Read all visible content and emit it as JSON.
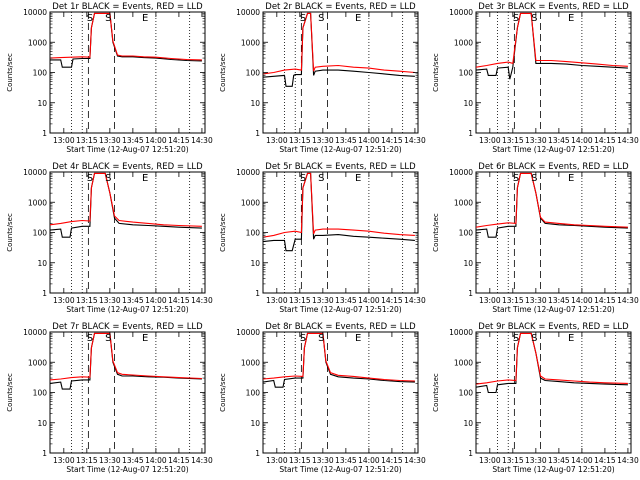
{
  "common": {
    "ylabel": "Counts/sec",
    "xlabel": "Start Time (12-Aug-07 12:51:20)",
    "x_ticks": [
      "13:00",
      "13:15",
      "13:30",
      "13:45",
      "14:00",
      "14:15",
      "14:30"
    ],
    "y_ticks": [
      "1",
      "10",
      "100",
      "1000",
      "10000"
    ],
    "markers": [
      "S",
      "S",
      "E"
    ],
    "colors": {
      "events": "#000000",
      "lld": "#ff0000"
    }
  },
  "chart_data": [
    {
      "type": "line",
      "title": "Det 1r BLACK = Events, RED = LLD",
      "xlabel": "Start Time (12-Aug-07 12:51:20)",
      "ylabel": "Counts/sec",
      "y_scale": "log",
      "ylim": [
        1,
        10000
      ],
      "xlim": [
        "12:51",
        "14:32"
      ],
      "series": [
        {
          "name": "Events",
          "color": "#000000",
          "x": [
            "12:51",
            "12:58",
            "12:59",
            "13:05",
            "13:06",
            "13:12",
            "13:17",
            "13:18",
            "13:20",
            "13:22",
            "13:27",
            "13:30",
            "13:32",
            "13:35",
            "13:38",
            "13:45",
            "13:52",
            "14:00",
            "14:10",
            "14:20",
            "14:30"
          ],
          "values": [
            260,
            260,
            150,
            150,
            280,
            290,
            290,
            3000,
            9000,
            9000,
            9000,
            9000,
            1000,
            350,
            330,
            330,
            310,
            300,
            270,
            250,
            240
          ]
        },
        {
          "name": "LLD",
          "color": "#ff0000",
          "x": [
            "12:51",
            "12:58",
            "13:05",
            "13:12",
            "13:17",
            "13:18",
            "13:20",
            "13:22",
            "13:27",
            "13:30",
            "13:32",
            "13:35",
            "13:38",
            "13:45",
            "13:52",
            "14:00",
            "14:10",
            "14:20",
            "14:30"
          ],
          "values": [
            300,
            310,
            320,
            330,
            320,
            3000,
            9000,
            9000,
            9000,
            9000,
            1100,
            380,
            350,
            350,
            330,
            320,
            290,
            270,
            260
          ]
        }
      ]
    },
    {
      "type": "line",
      "title": "Det 2r BLACK = Events, RED = LLD",
      "xlabel": "Start Time (12-Aug-07 12:51:20)",
      "ylabel": "Counts/sec",
      "y_scale": "log",
      "ylim": [
        1,
        10000
      ],
      "xlim": [
        "12:51",
        "14:32"
      ],
      "series": [
        {
          "name": "Events",
          "color": "#000000",
          "x": [
            "12:51",
            "12:58",
            "13:05",
            "13:06",
            "13:10",
            "13:11",
            "13:12",
            "13:16",
            "13:17",
            "13:20",
            "13:22",
            "13:24",
            "13:25",
            "13:30",
            "13:40",
            "13:50",
            "14:00",
            "14:10",
            "14:20",
            "14:30"
          ],
          "values": [
            70,
            75,
            80,
            35,
            35,
            80,
            85,
            85,
            3000,
            9000,
            9000,
            80,
            110,
            120,
            120,
            110,
            100,
            90,
            80,
            75
          ]
        },
        {
          "name": "LLD",
          "color": "#ff0000",
          "x": [
            "12:51",
            "12:58",
            "13:05",
            "13:12",
            "13:16",
            "13:17",
            "13:20",
            "13:22",
            "13:24",
            "13:25",
            "13:30",
            "13:40",
            "13:50",
            "14:00",
            "14:10",
            "14:20",
            "14:30"
          ],
          "values": [
            90,
            100,
            120,
            130,
            120,
            3000,
            9000,
            9000,
            110,
            150,
            160,
            170,
            150,
            140,
            120,
            110,
            100
          ]
        }
      ]
    },
    {
      "type": "line",
      "title": "Det 3r BLACK = Events, RED = LLD",
      "xlabel": "Start Time (12-Aug-07 12:51:20)",
      "ylabel": "Counts/sec",
      "y_scale": "log",
      "ylim": [
        1,
        10000
      ],
      "xlim": [
        "12:51",
        "14:32"
      ],
      "series": [
        {
          "name": "Events",
          "color": "#000000",
          "x": [
            "12:51",
            "12:58",
            "12:59",
            "13:04",
            "13:05",
            "13:12",
            "13:13",
            "13:15",
            "13:18",
            "13:20",
            "13:25",
            "13:27",
            "13:30",
            "13:40",
            "13:50",
            "14:00",
            "14:10",
            "14:20",
            "14:30"
          ],
          "values": [
            120,
            130,
            80,
            80,
            140,
            150,
            60,
            150,
            3000,
            9000,
            9000,
            9000,
            200,
            200,
            190,
            170,
            160,
            150,
            140
          ]
        },
        {
          "name": "LLD",
          "color": "#ff0000",
          "x": [
            "12:51",
            "12:58",
            "13:05",
            "13:12",
            "13:15",
            "13:18",
            "13:20",
            "13:25",
            "13:27",
            "13:30",
            "13:40",
            "13:50",
            "14:00",
            "14:10",
            "14:20",
            "14:30"
          ],
          "values": [
            150,
            170,
            200,
            220,
            200,
            3000,
            9000,
            9000,
            9000,
            250,
            250,
            230,
            210,
            190,
            170,
            160
          ]
        }
      ]
    },
    {
      "type": "line",
      "title": "Det 4r BLACK = Events, RED = LLD",
      "xlabel": "Start Time (12-Aug-07 12:51:20)",
      "ylabel": "Counts/sec",
      "y_scale": "log",
      "ylim": [
        1,
        10000
      ],
      "xlim": [
        "12:51",
        "14:32"
      ],
      "series": [
        {
          "name": "Events",
          "color": "#000000",
          "x": [
            "12:51",
            "12:58",
            "12:59",
            "13:04",
            "13:05",
            "13:12",
            "13:17",
            "13:18",
            "13:20",
            "13:25",
            "13:27",
            "13:30",
            "13:33",
            "13:36",
            "13:45",
            "13:55",
            "14:05",
            "14:15",
            "14:30"
          ],
          "values": [
            120,
            130,
            70,
            70,
            140,
            160,
            160,
            3000,
            9000,
            9000,
            9000,
            2000,
            300,
            200,
            180,
            170,
            160,
            150,
            140
          ]
        },
        {
          "name": "LLD",
          "color": "#ff0000",
          "x": [
            "12:51",
            "12:58",
            "13:05",
            "13:12",
            "13:17",
            "13:18",
            "13:20",
            "13:25",
            "13:27",
            "13:30",
            "13:33",
            "13:36",
            "13:45",
            "13:55",
            "14:05",
            "14:15",
            "14:30"
          ],
          "values": [
            180,
            200,
            230,
            250,
            240,
            3000,
            9000,
            9000,
            9000,
            2000,
            350,
            250,
            220,
            200,
            180,
            170,
            160
          ]
        }
      ]
    },
    {
      "type": "line",
      "title": "Det 5r BLACK = Events, RED = LLD",
      "xlabel": "Start Time (12-Aug-07 12:51:20)",
      "ylabel": "Counts/sec",
      "y_scale": "log",
      "ylim": [
        1,
        10000
      ],
      "xlim": [
        "12:51",
        "14:32"
      ],
      "series": [
        {
          "name": "Events",
          "color": "#000000",
          "x": [
            "12:51",
            "12:58",
            "13:05",
            "13:06",
            "13:10",
            "13:12",
            "13:16",
            "13:17",
            "13:20",
            "13:22",
            "13:24",
            "13:25",
            "13:30",
            "13:40",
            "13:50",
            "14:00",
            "14:10",
            "14:20",
            "14:30"
          ],
          "values": [
            50,
            55,
            55,
            25,
            25,
            60,
            60,
            3000,
            9000,
            9000,
            60,
            80,
            80,
            85,
            75,
            70,
            65,
            60,
            55
          ]
        },
        {
          "name": "LLD",
          "color": "#ff0000",
          "x": [
            "12:51",
            "12:58",
            "13:05",
            "13:12",
            "13:16",
            "13:17",
            "13:20",
            "13:22",
            "13:24",
            "13:25",
            "13:30",
            "13:40",
            "13:50",
            "14:00",
            "14:10",
            "14:20",
            "14:30"
          ],
          "values": [
            70,
            80,
            100,
            110,
            100,
            3000,
            9000,
            9000,
            90,
            120,
            130,
            130,
            120,
            110,
            95,
            85,
            80
          ]
        }
      ]
    },
    {
      "type": "line",
      "title": "Det 6r BLACK = Events, RED = LLD",
      "xlabel": "Start Time (12-Aug-07 12:51:20)",
      "ylabel": "Counts/sec",
      "y_scale": "log",
      "ylim": [
        1,
        10000
      ],
      "xlim": [
        "12:51",
        "14:32"
      ],
      "series": [
        {
          "name": "Events",
          "color": "#000000",
          "x": [
            "12:51",
            "12:58",
            "12:59",
            "13:04",
            "13:05",
            "13:12",
            "13:17",
            "13:18",
            "13:20",
            "13:25",
            "13:27",
            "13:30",
            "13:33",
            "13:36",
            "13:45",
            "13:55",
            "14:05",
            "14:15",
            "14:30"
          ],
          "values": [
            120,
            130,
            70,
            70,
            140,
            160,
            160,
            3000,
            9000,
            9000,
            9000,
            2000,
            300,
            200,
            180,
            170,
            160,
            150,
            140
          ]
        },
        {
          "name": "LLD",
          "color": "#ff0000",
          "x": [
            "12:51",
            "12:58",
            "13:05",
            "13:12",
            "13:17",
            "13:18",
            "13:20",
            "13:25",
            "13:27",
            "13:30",
            "13:33",
            "13:36",
            "13:45",
            "13:55",
            "14:05",
            "14:15",
            "14:30"
          ],
          "values": [
            150,
            170,
            190,
            210,
            200,
            3000,
            9000,
            9000,
            9000,
            2000,
            320,
            220,
            200,
            180,
            170,
            160,
            150
          ]
        }
      ]
    },
    {
      "type": "line",
      "title": "Det 7r BLACK = Events, RED = LLD",
      "xlabel": "Start Time (12-Aug-07 12:51:20)",
      "ylabel": "Counts/sec",
      "y_scale": "log",
      "ylim": [
        1,
        10000
      ],
      "xlim": [
        "12:51",
        "14:32"
      ],
      "series": [
        {
          "name": "Events",
          "color": "#000000",
          "x": [
            "12:51",
            "12:58",
            "12:59",
            "13:04",
            "13:05",
            "13:12",
            "13:17",
            "13:18",
            "13:20",
            "13:25",
            "13:27",
            "13:30",
            "13:32",
            "13:35",
            "13:38",
            "13:45",
            "13:55",
            "14:05",
            "14:15",
            "14:30"
          ],
          "values": [
            200,
            220,
            130,
            130,
            240,
            260,
            260,
            3000,
            9000,
            9000,
            9000,
            9000,
            1000,
            400,
            350,
            350,
            330,
            320,
            300,
            280
          ]
        },
        {
          "name": "LLD",
          "color": "#ff0000",
          "x": [
            "12:51",
            "12:58",
            "13:05",
            "13:12",
            "13:17",
            "13:18",
            "13:20",
            "13:25",
            "13:27",
            "13:30",
            "13:32",
            "13:35",
            "13:38",
            "13:45",
            "13:55",
            "14:05",
            "14:15",
            "14:30"
          ],
          "values": [
            260,
            280,
            310,
            330,
            320,
            3000,
            9000,
            9000,
            9000,
            9000,
            1100,
            450,
            400,
            380,
            350,
            330,
            310,
            290
          ]
        }
      ]
    },
    {
      "type": "line",
      "title": "Det 8r BLACK = Events, RED = LLD",
      "xlabel": "Start Time (12-Aug-07 12:51:20)",
      "ylabel": "Counts/sec",
      "y_scale": "log",
      "ylim": [
        1,
        10000
      ],
      "xlim": [
        "12:51",
        "14:32"
      ],
      "series": [
        {
          "name": "Events",
          "color": "#000000",
          "x": [
            "12:51",
            "12:58",
            "12:59",
            "13:04",
            "13:05",
            "13:12",
            "13:17",
            "13:18",
            "13:20",
            "13:25",
            "13:27",
            "13:30",
            "13:32",
            "13:35",
            "13:40",
            "13:50",
            "14:00",
            "14:10",
            "14:20",
            "14:30"
          ],
          "values": [
            220,
            250,
            150,
            150,
            270,
            300,
            300,
            3000,
            9000,
            9000,
            9000,
            9000,
            1000,
            400,
            330,
            300,
            280,
            250,
            230,
            220
          ]
        },
        {
          "name": "LLD",
          "color": "#ff0000",
          "x": [
            "12:51",
            "12:58",
            "13:05",
            "13:12",
            "13:17",
            "13:18",
            "13:20",
            "13:25",
            "13:27",
            "13:30",
            "13:32",
            "13:35",
            "13:40",
            "13:50",
            "14:00",
            "14:10",
            "14:20",
            "14:30"
          ],
          "values": [
            280,
            300,
            330,
            350,
            340,
            3000,
            9000,
            9000,
            9000,
            9000,
            1100,
            450,
            370,
            340,
            300,
            270,
            250,
            240
          ]
        }
      ]
    },
    {
      "type": "line",
      "title": "Det 9r BLACK = Events, RED = LLD",
      "xlabel": "Start Time (12-Aug-07 12:51:20)",
      "ylabel": "Counts/sec",
      "y_scale": "log",
      "ylim": [
        1,
        10000
      ],
      "xlim": [
        "12:51",
        "14:32"
      ],
      "series": [
        {
          "name": "Events",
          "color": "#000000",
          "x": [
            "12:51",
            "12:58",
            "12:59",
            "13:04",
            "13:05",
            "13:12",
            "13:17",
            "13:18",
            "13:20",
            "13:25",
            "13:27",
            "13:30",
            "13:33",
            "13:36",
            "13:45",
            "13:55",
            "14:05",
            "14:15",
            "14:30"
          ],
          "values": [
            150,
            170,
            100,
            100,
            180,
            200,
            200,
            3000,
            9000,
            9000,
            9000,
            2000,
            300,
            250,
            230,
            210,
            200,
            190,
            180
          ]
        },
        {
          "name": "LLD",
          "color": "#ff0000",
          "x": [
            "12:51",
            "12:58",
            "13:05",
            "13:12",
            "13:17",
            "13:18",
            "13:20",
            "13:25",
            "13:27",
            "13:30",
            "13:33",
            "13:36",
            "13:45",
            "13:55",
            "14:05",
            "14:15",
            "14:30"
          ],
          "values": [
            190,
            210,
            240,
            260,
            250,
            3000,
            9000,
            9000,
            9000,
            2000,
            350,
            280,
            260,
            240,
            220,
            210,
            200
          ]
        }
      ]
    }
  ]
}
